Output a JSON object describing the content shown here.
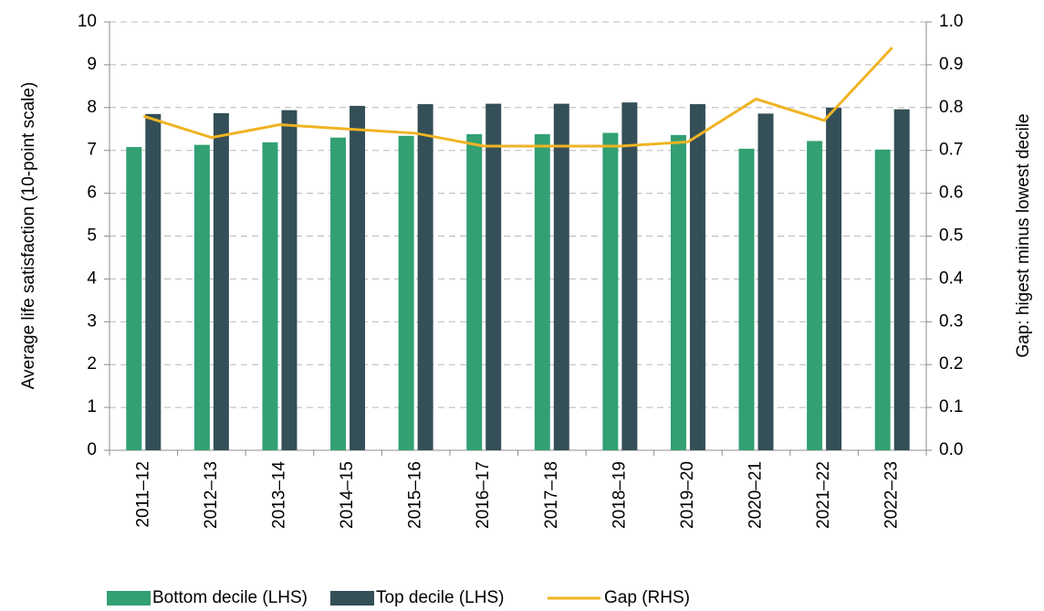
{
  "chart_data": {
    "type": "bar",
    "y_label": "Average life satisfaction (10-point scale)",
    "y2_label": "Gap: higest minus lowest decile",
    "categories": [
      "2011–12",
      "2012–13",
      "2013–14",
      "2014–15",
      "2015–16",
      "2016–17",
      "2017–18",
      "2018–19",
      "2019–20",
      "2020–21",
      "2021–22",
      "2022–23"
    ],
    "series": [
      {
        "name": "Bottom decile (LHS)",
        "color": "#32a072",
        "values": [
          7.08,
          7.13,
          7.19,
          7.3,
          7.34,
          7.38,
          7.38,
          7.41,
          7.36,
          7.04,
          7.22,
          7.02
        ]
      },
      {
        "name": "Top decile (LHS)",
        "color": "#344f57",
        "values": [
          7.85,
          7.87,
          7.94,
          8.04,
          8.08,
          8.09,
          8.09,
          8.12,
          8.08,
          7.86,
          8.0,
          7.96
        ]
      },
      {
        "name": "Gap (RHS)",
        "color": "#f0b323",
        "type": "line",
        "axis": "y2",
        "values": [
          0.78,
          0.73,
          0.76,
          0.75,
          0.74,
          0.71,
          0.71,
          0.71,
          0.72,
          0.82,
          0.77,
          0.94
        ]
      }
    ],
    "ylim": [
      0,
      10
    ],
    "yticks": [
      0,
      1,
      2,
      3,
      4,
      5,
      6,
      7,
      8,
      9,
      10
    ],
    "y2lim": [
      0,
      1
    ],
    "y2ticks": [
      {
        "value": 0,
        "label": "0.0"
      },
      0.1,
      0.2,
      0.3,
      0.4,
      0.5,
      0.6,
      0.7,
      0.8,
      0.9,
      {
        "value": 1,
        "label": "1.0"
      }
    ],
    "grid": true,
    "legend": "bottom"
  }
}
